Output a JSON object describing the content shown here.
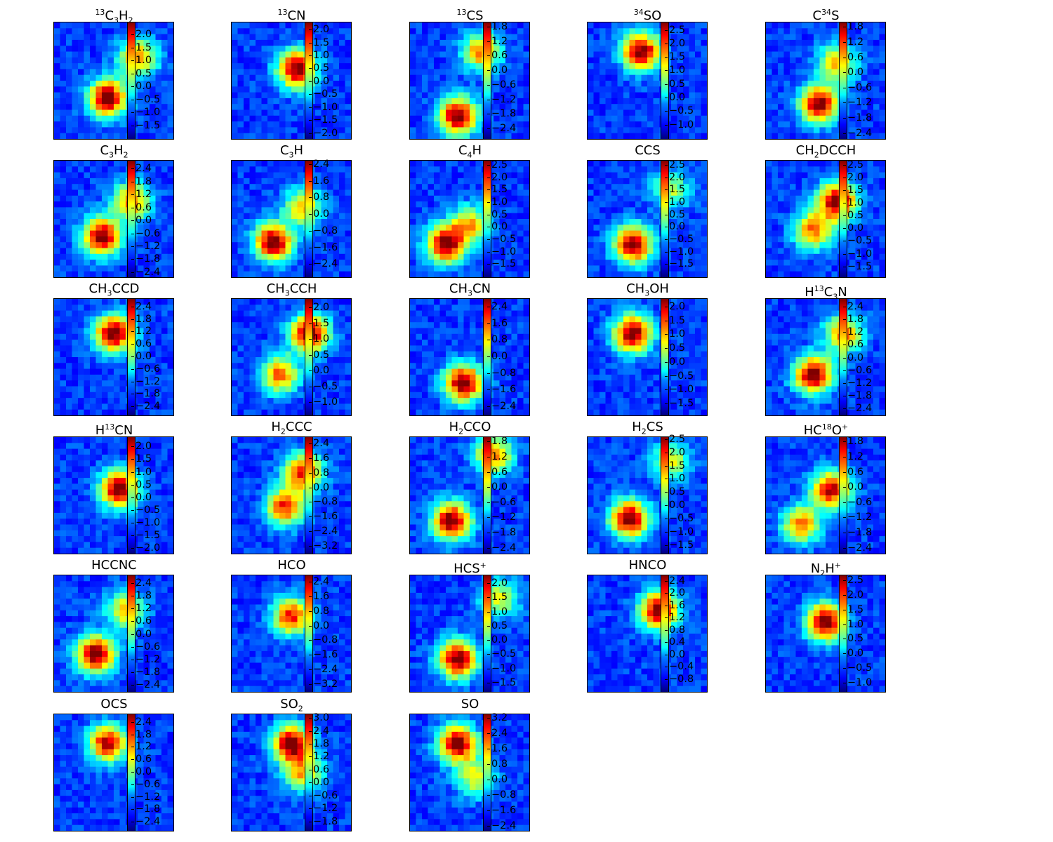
{
  "chart_data": {
    "type": "heatmap",
    "colormap": "jet",
    "panels": [
      {
        "title": "$^{13}$C$_3$H$_2$",
        "ticks": [
          "2.0",
          "1.5",
          "1.0",
          "0.5",
          "0.0",
          "−0.5",
          "−1.0",
          "−1.5"
        ],
        "vrange": [
          -2.0,
          2.5
        ],
        "blobs": [
          {
            "x": 0.45,
            "y": 0.65,
            "v": 1.0
          },
          {
            "x": 0.7,
            "y": 0.3,
            "v": 0.7
          }
        ]
      },
      {
        "title": "$^{13}$CN",
        "ticks": [
          "2.0",
          "1.5",
          "1.0",
          "0.5",
          "0.0",
          "−0.5",
          "−1.0",
          "−1.5",
          "−2.0"
        ],
        "vrange": [
          -2.2,
          2.3
        ],
        "blobs": [
          {
            "x": 0.55,
            "y": 0.4,
            "v": 1.0
          }
        ]
      },
      {
        "title": "$^{13}$CS",
        "ticks": [
          "1.8",
          "1.2",
          "0.6",
          "0.0",
          "−0.6",
          "−1.2",
          "−1.8",
          "−2.4"
        ],
        "vrange": [
          -2.8,
          2.0
        ],
        "blobs": [
          {
            "x": 0.4,
            "y": 0.8,
            "v": 1.0
          },
          {
            "x": 0.6,
            "y": 0.25,
            "v": 0.7
          }
        ]
      },
      {
        "title": "$^{34}$SO",
        "ticks": [
          "2.5",
          "2.0",
          "1.5",
          "1.0",
          "0.5",
          "0.0",
          "−0.5",
          "−1.0"
        ],
        "vrange": [
          -1.5,
          2.8
        ],
        "blobs": [
          {
            "x": 0.45,
            "y": 0.25,
            "v": 1.0
          }
        ]
      },
      {
        "title": "C$^{34}$S",
        "ticks": [
          "1.8",
          "1.2",
          "0.6",
          "0.0",
          "−0.6",
          "−1.2",
          "−1.8",
          "−2.4"
        ],
        "vrange": [
          -2.6,
          2.0
        ],
        "blobs": [
          {
            "x": 0.45,
            "y": 0.7,
            "v": 1.0
          },
          {
            "x": 0.6,
            "y": 0.35,
            "v": 0.6
          }
        ]
      },
      {
        "title": "C$_3$H$_2$",
        "ticks": [
          "2.4",
          "1.8",
          "1.2",
          "0.6",
          "0.0",
          "−0.6",
          "−1.2",
          "−1.8",
          "−2.4"
        ],
        "vrange": [
          -2.6,
          2.8
        ],
        "blobs": [
          {
            "x": 0.4,
            "y": 0.65,
            "v": 1.0
          },
          {
            "x": 0.65,
            "y": 0.35,
            "v": 0.7
          }
        ]
      },
      {
        "title": "C$_3$H",
        "ticks": [
          "2.4",
          "1.6",
          "0.8",
          "0.0",
          "−0.8",
          "−1.6",
          "−2.4"
        ],
        "vrange": [
          -3.0,
          2.6
        ],
        "blobs": [
          {
            "x": 0.35,
            "y": 0.7,
            "v": 1.0
          },
          {
            "x": 0.6,
            "y": 0.4,
            "v": 0.6
          }
        ]
      },
      {
        "title": "C$_4$H",
        "ticks": [
          "2.5",
          "2.0",
          "1.5",
          "1.0",
          "0.5",
          "0.0",
          "−0.5",
          "−1.0",
          "−1.5"
        ],
        "vrange": [
          -2.0,
          2.7
        ],
        "blobs": [
          {
            "x": 0.3,
            "y": 0.72,
            "v": 1.0
          },
          {
            "x": 0.5,
            "y": 0.55,
            "v": 0.6
          }
        ]
      },
      {
        "title": "CCS",
        "ticks": [
          "2.5",
          "2.0",
          "1.5",
          "1.0",
          "0.5",
          "0.0",
          "−0.5",
          "−1.0",
          "−1.5"
        ],
        "vrange": [
          -2.0,
          2.7
        ],
        "blobs": [
          {
            "x": 0.38,
            "y": 0.72,
            "v": 1.0
          },
          {
            "x": 0.7,
            "y": 0.25,
            "v": 0.45
          }
        ]
      },
      {
        "title": "CH$_2$DCCH",
        "ticks": [
          "2.5",
          "2.0",
          "1.5",
          "1.0",
          "0.5",
          "0.0",
          "−0.5",
          "−1.0",
          "−1.5"
        ],
        "vrange": [
          -1.9,
          2.7
        ],
        "blobs": [
          {
            "x": 0.6,
            "y": 0.35,
            "v": 1.0
          },
          {
            "x": 0.4,
            "y": 0.6,
            "v": 0.7
          }
        ]
      },
      {
        "title": "CH$_3$CCD",
        "ticks": [
          "2.4",
          "1.8",
          "1.2",
          "0.6",
          "0.0",
          "−0.6",
          "−1.2",
          "−1.8",
          "−2.4"
        ],
        "vrange": [
          -2.8,
          2.8
        ],
        "blobs": [
          {
            "x": 0.5,
            "y": 0.3,
            "v": 1.0
          }
        ]
      },
      {
        "title": "CH$_3$CCH",
        "ticks": [
          "2.0",
          "1.5",
          "1.0",
          "0.5",
          "0.0",
          "−0.5",
          "−1.0"
        ],
        "vrange": [
          -1.4,
          2.3
        ],
        "blobs": [
          {
            "x": 0.65,
            "y": 0.3,
            "v": 1.0
          },
          {
            "x": 0.4,
            "y": 0.65,
            "v": 0.7
          }
        ]
      },
      {
        "title": "CH$_3$CN",
        "ticks": [
          "2.4",
          "1.6",
          "0.8",
          "0.0",
          "−0.8",
          "−1.6",
          "−2.4"
        ],
        "vrange": [
          -2.8,
          2.8
        ],
        "blobs": [
          {
            "x": 0.45,
            "y": 0.72,
            "v": 1.0
          }
        ]
      },
      {
        "title": "CH$_3$OH",
        "ticks": [
          "2.0",
          "1.5",
          "1.0",
          "0.5",
          "0.0",
          "−0.5",
          "−1.0",
          "−1.5"
        ],
        "vrange": [
          -1.9,
          2.3
        ],
        "blobs": [
          {
            "x": 0.38,
            "y": 0.3,
            "v": 1.0
          }
        ]
      },
      {
        "title": "H$^{13}$C$_3$N",
        "ticks": [
          "2.4",
          "1.8",
          "1.2",
          "0.6",
          "0.0",
          "−0.6",
          "−1.2",
          "−1.8",
          "−2.4"
        ],
        "vrange": [
          -2.7,
          2.8
        ],
        "blobs": [
          {
            "x": 0.4,
            "y": 0.65,
            "v": 1.0
          },
          {
            "x": 0.65,
            "y": 0.3,
            "v": 0.7
          }
        ]
      },
      {
        "title": "H$^{13}$CN",
        "ticks": [
          "2.0",
          "1.5",
          "1.0",
          "0.5",
          "0.0",
          "−0.5",
          "−1.0",
          "−1.5",
          "−2.0"
        ],
        "vrange": [
          -2.2,
          2.4
        ],
        "blobs": [
          {
            "x": 0.55,
            "y": 0.45,
            "v": 1.0
          }
        ]
      },
      {
        "title": "H$_2$CCC",
        "ticks": [
          "2.4",
          "1.6",
          "0.8",
          "0.0",
          "−0.8",
          "−1.6",
          "−2.4",
          "−3.2"
        ],
        "vrange": [
          -3.6,
          2.8
        ],
        "blobs": [
          {
            "x": 0.45,
            "y": 0.6,
            "v": 0.8
          },
          {
            "x": 0.6,
            "y": 0.3,
            "v": 0.8
          }
        ]
      },
      {
        "title": "H$_2$CCO",
        "ticks": [
          "1.8",
          "1.2",
          "0.6",
          "0.0",
          "−0.6",
          "−1.2",
          "−1.8",
          "−2.4"
        ],
        "vrange": [
          -2.6,
          2.0
        ],
        "blobs": [
          {
            "x": 0.35,
            "y": 0.72,
            "v": 1.0
          },
          {
            "x": 0.7,
            "y": 0.15,
            "v": 0.7
          }
        ]
      },
      {
        "title": "H$_2$CS",
        "ticks": [
          "2.5",
          "2.0",
          "1.5",
          "1.0",
          "0.5",
          "0.0",
          "−0.5",
          "−1.0",
          "−1.5"
        ],
        "vrange": [
          -1.8,
          2.6
        ],
        "blobs": [
          {
            "x": 0.35,
            "y": 0.7,
            "v": 1.0
          },
          {
            "x": 0.7,
            "y": 0.2,
            "v": 0.5
          }
        ]
      },
      {
        "title": "HC$^{18}$O$^+$",
        "ticks": [
          "1.8",
          "1.2",
          "0.6",
          "0.0",
          "−0.6",
          "−1.2",
          "−1.8",
          "−2.4"
        ],
        "vrange": [
          -2.6,
          2.0
        ],
        "blobs": [
          {
            "x": 0.55,
            "y": 0.45,
            "v": 0.9
          },
          {
            "x": 0.3,
            "y": 0.75,
            "v": 0.7
          }
        ]
      },
      {
        "title": "HCCNC",
        "ticks": [
          "2.4",
          "1.8",
          "1.2",
          "0.6",
          "0.0",
          "−0.6",
          "−1.2",
          "−1.8",
          "−2.4"
        ],
        "vrange": [
          -2.7,
          2.8
        ],
        "blobs": [
          {
            "x": 0.35,
            "y": 0.68,
            "v": 1.0
          },
          {
            "x": 0.6,
            "y": 0.3,
            "v": 0.6
          }
        ]
      },
      {
        "title": "HCO",
        "ticks": [
          "2.4",
          "1.6",
          "0.8",
          "0.0",
          "−0.8",
          "−1.6",
          "−2.4",
          "−3.2"
        ],
        "vrange": [
          -3.6,
          2.8
        ],
        "blobs": [
          {
            "x": 0.5,
            "y": 0.35,
            "v": 0.8
          }
        ]
      },
      {
        "title": "HCS$^+$",
        "ticks": [
          "2.0",
          "1.5",
          "1.0",
          "0.5",
          "0.0",
          "−0.5",
          "−1.0",
          "−1.5"
        ],
        "vrange": [
          -1.8,
          2.3
        ],
        "blobs": [
          {
            "x": 0.4,
            "y": 0.72,
            "v": 1.0
          },
          {
            "x": 0.75,
            "y": 0.2,
            "v": 0.5
          }
        ]
      },
      {
        "title": "HNCO",
        "ticks": [
          "2.4",
          "2.0",
          "1.6",
          "1.2",
          "0.8",
          "0.4",
          "0.0",
          "−0.4",
          "−0.8"
        ],
        "vrange": [
          -1.2,
          2.6
        ],
        "blobs": [
          {
            "x": 0.6,
            "y": 0.3,
            "v": 1.0
          }
        ]
      },
      {
        "title": "N$_2$H$^+$",
        "ticks": [
          "2.5",
          "2.0",
          "1.5",
          "1.0",
          "0.5",
          "0.0",
          "−0.5",
          "−1.0"
        ],
        "vrange": [
          -1.3,
          2.7
        ],
        "blobs": [
          {
            "x": 0.5,
            "y": 0.4,
            "v": 1.0
          }
        ]
      },
      {
        "title": "OCS",
        "ticks": [
          "2.4",
          "1.8",
          "1.2",
          "0.6",
          "0.0",
          "−0.6",
          "−1.2",
          "−1.8",
          "−2.4"
        ],
        "vrange": [
          -2.8,
          2.8
        ],
        "blobs": [
          {
            "x": 0.45,
            "y": 0.25,
            "v": 0.9
          }
        ]
      },
      {
        "title": "SO$_2$",
        "ticks": [
          "3.0",
          "2.4",
          "1.8",
          "1.2",
          "0.6",
          "0.0",
          "−0.6",
          "−1.2",
          "−1.8"
        ],
        "vrange": [
          -2.2,
          3.2
        ],
        "blobs": [
          {
            "x": 0.5,
            "y": 0.25,
            "v": 1.0
          },
          {
            "x": 0.6,
            "y": 0.5,
            "v": 0.6
          }
        ]
      },
      {
        "title": "SO",
        "ticks": [
          "3.2",
          "2.4",
          "1.6",
          "0.8",
          "0.0",
          "−0.8",
          "−1.6",
          "−2.4"
        ],
        "vrange": [
          -2.6,
          3.4
        ],
        "blobs": [
          {
            "x": 0.4,
            "y": 0.25,
            "v": 1.0
          },
          {
            "x": 0.55,
            "y": 0.55,
            "v": 0.5
          }
        ]
      }
    ]
  }
}
